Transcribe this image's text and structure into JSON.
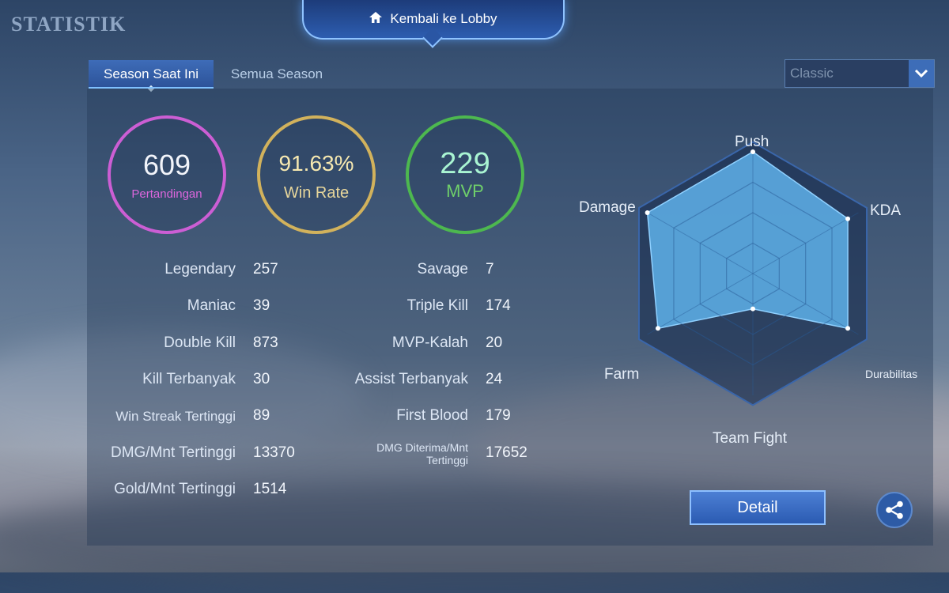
{
  "page_title": "STATISTIK",
  "lobby": {
    "label": "Kembali ke Lobby"
  },
  "tabs": [
    {
      "label": "Season Saat Ini",
      "active": true
    },
    {
      "label": "Semua Season",
      "active": false
    }
  ],
  "mode_select": {
    "value": "Classic"
  },
  "summary": {
    "matches": {
      "value": "609",
      "label": "Pertandingan"
    },
    "win_rate": {
      "value": "91.63%",
      "label": "Win Rate"
    },
    "mvp": {
      "value": "229",
      "label": "MVP"
    }
  },
  "stats_left": [
    {
      "label": "Legendary",
      "value": "257"
    },
    {
      "label": "Maniac",
      "value": "39"
    },
    {
      "label": "Double Kill",
      "value": "873"
    },
    {
      "label": "Kill Terbanyak",
      "value": "30"
    },
    {
      "label": "Win Streak Tertinggi",
      "value": "89"
    },
    {
      "label": "DMG/Mnt Tertinggi",
      "value": "13370"
    },
    {
      "label": "Gold/Mnt Tertinggi",
      "value": "1514"
    }
  ],
  "stats_right": [
    {
      "label": "Savage",
      "value": "7"
    },
    {
      "label": "Triple Kill",
      "value": "174"
    },
    {
      "label": "MVP-Kalah",
      "value": "20"
    },
    {
      "label": "Assist Terbanyak",
      "value": "24"
    },
    {
      "label": "First Blood",
      "value": "179"
    },
    {
      "label": "DMG Diterima/Mnt Tertinggi",
      "value": "17652"
    }
  ],
  "radar": {
    "axes": [
      "Push",
      "KDA",
      "Durabilitas",
      "Team Fight",
      "Farm",
      "Damage"
    ],
    "values": [
      1.0,
      0.9,
      0.9,
      0.29,
      0.9,
      1.0
    ]
  },
  "buttons": {
    "detail": "Detail"
  },
  "icons": {
    "home": "home-icon",
    "chevron": "chevron-down-icon",
    "share": "share-icon"
  }
}
